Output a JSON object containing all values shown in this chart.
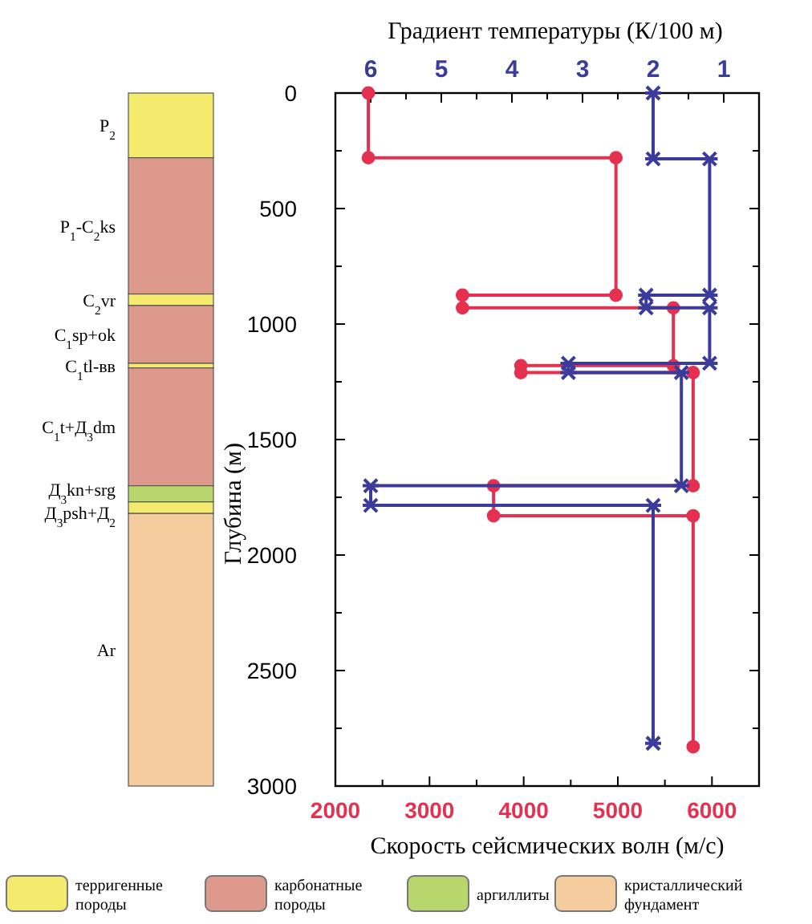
{
  "chart_data": [
    {
      "type": "bar",
      "stacked": true,
      "categories": [
        null
      ],
      "ylim": [
        3000,
        0
      ],
      "tick_labels": false,
      "series": [
        {
          "name": "P$_{2}$",
          "color": "#f3ea6e",
          "values": [
            280
          ]
        },
        {
          "name": "P$_{1}$-C$_{2}$ks",
          "color": "#dd9a8c",
          "values": [
            590
          ]
        },
        {
          "name": "C$_{2}$vr",
          "color": "#f3ea6e",
          "values": [
            50
          ]
        },
        {
          "name": "C$_{1}$sp+ok",
          "color": "#dd9a8c",
          "values": [
            250
          ]
        },
        {
          "name": "C$_{1}$tl-вв",
          "color": "#f3ea6e",
          "values": [
            20
          ]
        },
        {
          "name": "C$_{1}$t+Д$_{3}$dm",
          "color": "#dd9a8c",
          "values": [
            510
          ]
        },
        {
          "name": "Д$_{3}$kn+srg",
          "color": "#b7d66c",
          "values": [
            70
          ]
        },
        {
          "name": "Д$_{3}$psh+Д$_{2}$",
          "color": "#f3ea6e",
          "values": [
            50
          ]
        },
        {
          "name": "Ar",
          "color": "#f5cc9e",
          "values": [
            1180
          ]
        }
      ],
      "annotations": [
        "терригенные породы",
        "карбонатные породы",
        "аргиллиты",
        "кристаллический фундамент"
      ]
    },
    {
      "type": "line",
      "xlabel": "Скорость сейсмических волн (м/с)",
      "x2label": "Градиент температуры (К/100 м)",
      "ylabel": "Глубина (м)",
      "xlim": [
        2000,
        6500
      ],
      "xticks": [
        2000,
        {
          "value": 2500,
          "label": null
        },
        3000,
        {
          "value": 3500,
          "label": null
        },
        4000,
        {
          "value": 4500,
          "label": null
        },
        5000,
        {
          "value": 5500,
          "label": null
        },
        6000
      ],
      "x2lim": [
        6.5,
        0.5
      ],
      "x2ticks": [
        6,
        {
          "value": 5.5,
          "label": null
        },
        5,
        {
          "value": 4.5,
          "label": null
        },
        4,
        {
          "value": 3.5,
          "label": null
        },
        3,
        {
          "value": 2.5,
          "label": null
        },
        2,
        {
          "value": 1.5,
          "label": null
        },
        1
      ],
      "ylim": [
        3000,
        0
      ],
      "yticks": [
        0,
        {
          "value": 250,
          "label": null
        },
        500,
        {
          "value": 750,
          "label": null
        },
        1000,
        {
          "value": 1250,
          "label": null
        },
        1500,
        {
          "value": 1750,
          "label": null
        },
        2000,
        {
          "value": 2250,
          "label": null
        },
        2500,
        {
          "value": 2750,
          "label": null
        },
        3000
      ],
      "series": [
        {
          "color": "#e5304f",
          "marker": "circle",
          "x": [
            2350,
            2350,
            4980,
            4980,
            3350,
            3350,
            5590,
            5590,
            3970,
            3970,
            5800,
            5800,
            3680,
            3680,
            5800,
            5800
          ],
          "values": [
            0,
            280,
            280,
            875,
            875,
            930,
            930,
            1180,
            1180,
            1210,
            1210,
            1700,
            1700,
            1830,
            1830,
            2830
          ]
        },
        {
          "color": "#3b3b9c",
          "marker": "cross",
          "axis": "x2",
          "x": [
            2,
            2,
            1.2,
            1.2,
            2.1,
            2.1,
            1.2,
            1.2,
            3.2,
            3.2,
            1.6,
            1.6,
            6,
            6,
            2,
            2
          ],
          "values": [
            0,
            285,
            285,
            875,
            875,
            930,
            930,
            1170,
            1170,
            1210,
            1210,
            1700,
            1700,
            1785,
            1785,
            2815
          ]
        }
      ]
    }
  ]
}
